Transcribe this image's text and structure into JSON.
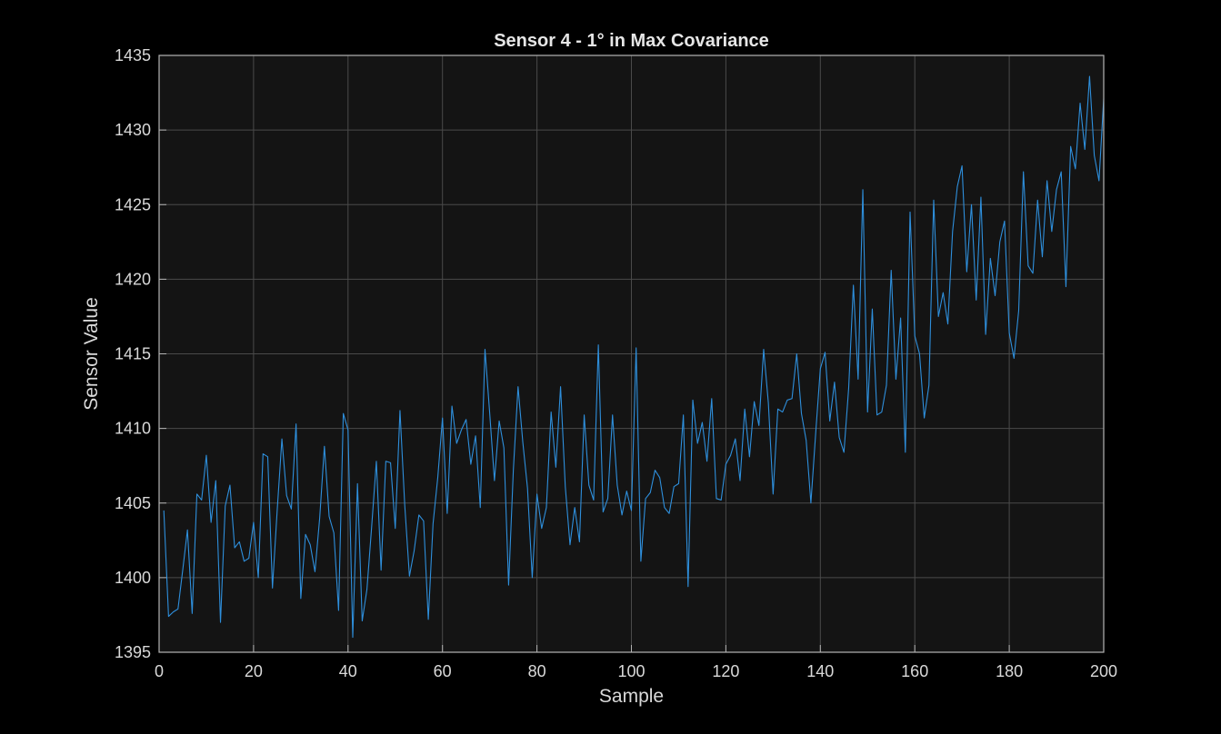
{
  "chart_data": {
    "type": "line",
    "title": "Sensor 4 - 1° in Max Covariance",
    "xlabel": "Sample",
    "ylabel": "Sensor Value",
    "xlim": [
      0,
      200
    ],
    "ylim": [
      1395,
      1435
    ],
    "xticks": [
      0,
      20,
      40,
      60,
      80,
      100,
      120,
      140,
      160,
      180,
      200
    ],
    "yticks": [
      1395,
      1400,
      1405,
      1410,
      1415,
      1420,
      1425,
      1430,
      1435
    ],
    "xtick_labels": [
      "0",
      "20",
      "40",
      "60",
      "80",
      "100",
      "120",
      "140",
      "160",
      "180",
      "200"
    ],
    "ytick_labels": [
      "1395",
      "1400",
      "1405",
      "1410",
      "1415",
      "1420",
      "1425",
      "1430",
      "1435"
    ],
    "grid": true,
    "colors": {
      "background": "#000000",
      "plot_background": "#141414",
      "grid": "#4a4a4a",
      "axes": "#b3b3b3",
      "line": "#2e8fdc"
    },
    "series": [
      {
        "x": [
          1,
          2,
          3,
          4,
          5,
          6,
          7,
          8,
          9,
          10,
          11,
          12,
          13,
          14,
          15,
          16,
          17,
          18,
          19,
          20,
          21,
          22,
          23,
          24,
          25,
          26,
          27,
          28,
          29,
          30,
          31,
          32,
          33,
          34,
          35,
          36,
          37,
          38,
          39,
          40,
          41,
          42,
          43,
          44,
          45,
          46,
          47,
          48,
          49,
          50,
          51,
          52,
          53,
          54,
          55,
          56,
          57,
          58,
          59,
          60,
          61,
          62,
          63,
          64,
          65,
          66,
          67,
          68,
          69,
          70,
          71,
          72,
          73,
          74,
          75,
          76,
          77,
          78,
          79,
          80,
          81,
          82,
          83,
          84,
          85,
          86,
          87,
          88,
          89,
          90,
          91,
          92,
          93,
          94,
          95,
          96,
          97,
          98,
          99,
          100,
          101,
          102,
          103,
          104,
          105,
          106,
          107,
          108,
          109,
          110,
          111,
          112,
          113,
          114,
          115,
          116,
          117,
          118,
          119,
          120,
          121,
          122,
          123,
          124,
          125,
          126,
          127,
          128,
          129,
          130,
          131,
          132,
          133,
          134,
          135,
          136,
          137,
          138,
          139,
          140,
          141,
          142,
          143,
          144,
          145,
          146,
          147,
          148,
          149,
          150,
          151,
          152,
          153,
          154,
          155,
          156,
          157,
          158,
          159,
          160,
          161,
          162,
          163,
          164,
          165,
          166,
          167,
          168,
          169,
          170,
          171,
          172,
          173,
          174,
          175,
          176,
          177,
          178,
          179,
          180,
          181,
          182,
          183,
          184,
          185,
          186,
          187,
          188,
          189,
          190,
          191,
          192,
          193,
          194,
          195,
          196,
          197,
          198,
          199,
          200
        ],
        "values": [
          1404.5,
          1397.4,
          1397.7,
          1397.9,
          1400.5,
          1403.2,
          1397.6,
          1405.6,
          1405.2,
          1408.2,
          1403.7,
          1406.5,
          1397.0,
          1404.8,
          1406.2,
          1402.0,
          1402.4,
          1401.1,
          1401.3,
          1403.7,
          1400.0,
          1408.3,
          1408.1,
          1399.3,
          1404.5,
          1409.3,
          1405.5,
          1404.6,
          1410.3,
          1398.6,
          1402.9,
          1402.2,
          1400.4,
          1404.0,
          1408.8,
          1404.1,
          1403.0,
          1397.8,
          1411.0,
          1409.9,
          1396.0,
          1406.3,
          1397.1,
          1399.2,
          1403.4,
          1407.8,
          1400.5,
          1407.8,
          1407.7,
          1403.3,
          1411.2,
          1404.9,
          1400.1,
          1401.8,
          1404.2,
          1403.8,
          1397.2,
          1403.6,
          1406.7,
          1410.7,
          1404.3,
          1411.5,
          1409.0,
          1409.9,
          1410.6,
          1407.6,
          1409.5,
          1404.7,
          1415.3,
          1411.0,
          1406.5,
          1410.5,
          1408.7,
          1399.5,
          1407.2,
          1412.8,
          1409.1,
          1406.0,
          1400.0,
          1405.6,
          1403.3,
          1404.7,
          1411.1,
          1407.4,
          1412.8,
          1406.1,
          1402.2,
          1404.7,
          1402.4,
          1410.9,
          1406.2,
          1405.2,
          1415.6,
          1404.4,
          1405.3,
          1410.9,
          1406.2,
          1404.2,
          1405.8,
          1404.5,
          1415.4,
          1401.1,
          1405.3,
          1405.7,
          1407.2,
          1406.7,
          1404.7,
          1404.3,
          1406.1,
          1406.3,
          1410.9,
          1399.4,
          1411.9,
          1409.0,
          1410.4,
          1407.8,
          1412.0,
          1405.3,
          1405.2,
          1407.6,
          1408.2,
          1409.3,
          1406.5,
          1411.3,
          1408.1,
          1411.8,
          1410.2,
          1415.3,
          1411.7,
          1405.6,
          1411.3,
          1411.1,
          1411.9,
          1412.0,
          1415.0,
          1411.0,
          1409.2,
          1405.0,
          1409.6,
          1414.0,
          1415.1,
          1410.5,
          1413.1,
          1409.4,
          1408.4,
          1412.7,
          1419.6,
          1413.3,
          1426.0,
          1411.1,
          1418.0,
          1410.9,
          1411.1,
          1412.9,
          1420.6,
          1413.3,
          1417.4,
          1408.4,
          1424.5,
          1416.2,
          1415.0,
          1410.7,
          1412.9,
          1425.3,
          1417.5,
          1419.1,
          1417.0,
          1423.2,
          1426.2,
          1427.6,
          1420.5,
          1425.0,
          1418.6,
          1425.5,
          1416.3,
          1421.4,
          1418.9,
          1422.5,
          1423.9,
          1416.4,
          1414.7,
          1417.9,
          1427.2,
          1420.9,
          1420.4,
          1425.3,
          1421.5,
          1426.6,
          1423.2,
          1426.0,
          1427.2,
          1419.5,
          1428.9,
          1427.4,
          1431.8,
          1428.7,
          1433.6,
          1428.3,
          1426.6,
          1432.1
        ]
      }
    ]
  }
}
